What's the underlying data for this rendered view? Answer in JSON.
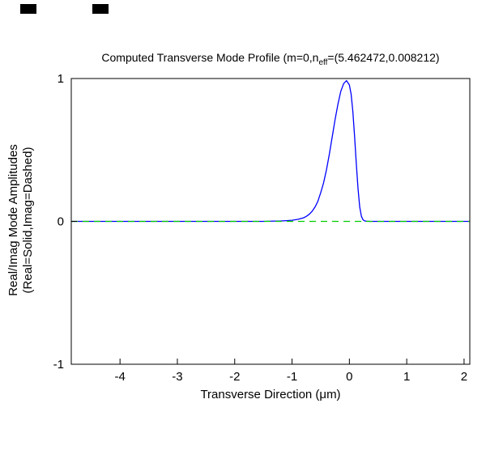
{
  "window": {
    "artifact_count": 2
  },
  "chart_data": {
    "type": "line",
    "title": "Computed Transverse Mode Profile (m=0,n_eff=(5.462472,0.008212)",
    "title_parts": {
      "prefix": "Computed Transverse Mode Profile (m=0,n",
      "sub": "eff",
      "suffix": "=(5.462472,0.008212)"
    },
    "xlabel": "Transverse Direction (μm)",
    "ylabel_lines": [
      "Real/Imag Mode Amplitudes",
      "(Real=Solid,Imag=Dashed)"
    ],
    "xlim": [
      -4.85,
      2.1
    ],
    "ylim": [
      -1,
      1
    ],
    "xticks": [
      -4,
      -3,
      -2,
      -1,
      0,
      1,
      2
    ],
    "yticks": [
      -1,
      0,
      1
    ],
    "grid": false,
    "legend_position": "none",
    "axes_color": "#000000",
    "background_color": "#ffffff",
    "series": [
      {
        "name": "Real",
        "line_style": "solid",
        "color": "#0000ff",
        "points": [
          [
            -4.85,
            0
          ],
          [
            -3.0,
            0
          ],
          [
            -2.0,
            0
          ],
          [
            -1.5,
            0
          ],
          [
            -1.3,
            0.002
          ],
          [
            -1.2,
            0.003
          ],
          [
            -1.1,
            0.005
          ],
          [
            -1.0,
            0.008
          ],
          [
            -0.9,
            0.014
          ],
          [
            -0.8,
            0.025
          ],
          [
            -0.75,
            0.035
          ],
          [
            -0.7,
            0.05
          ],
          [
            -0.65,
            0.07
          ],
          [
            -0.6,
            0.1
          ],
          [
            -0.55,
            0.14
          ],
          [
            -0.5,
            0.2
          ],
          [
            -0.45,
            0.27
          ],
          [
            -0.4,
            0.36
          ],
          [
            -0.35,
            0.47
          ],
          [
            -0.3,
            0.59
          ],
          [
            -0.25,
            0.71
          ],
          [
            -0.2,
            0.82
          ],
          [
            -0.15,
            0.91
          ],
          [
            -0.1,
            0.965
          ],
          [
            -0.05,
            0.985
          ],
          [
            0.0,
            0.955
          ],
          [
            0.03,
            0.89
          ],
          [
            0.06,
            0.77
          ],
          [
            0.09,
            0.6
          ],
          [
            0.12,
            0.41
          ],
          [
            0.15,
            0.23
          ],
          [
            0.18,
            0.1
          ],
          [
            0.21,
            0.035
          ],
          [
            0.24,
            0.01
          ],
          [
            0.27,
            0.003
          ],
          [
            0.3,
            0.001
          ],
          [
            0.35,
            0
          ],
          [
            0.8,
            0
          ],
          [
            2.1,
            0
          ]
        ]
      },
      {
        "name": "Imag",
        "line_style": "dashed",
        "color": "#00cc00",
        "points": [
          [
            -4.85,
            0
          ],
          [
            2.1,
            0
          ]
        ]
      }
    ]
  }
}
